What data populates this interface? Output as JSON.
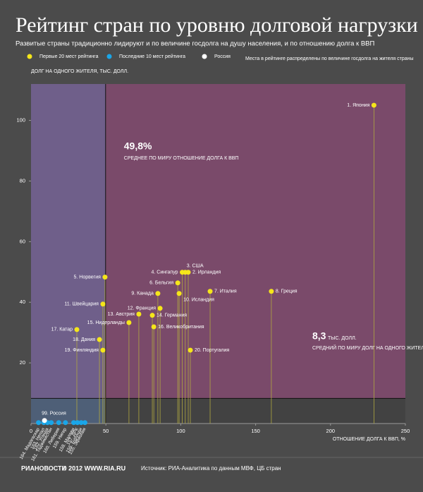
{
  "chart_data": {
    "type": "scatter",
    "title": "Рейтинг стран по уровню долговой нагрузки",
    "subtitle": "Развитые страны традиционно лидируют и по величине госдолга на душу населения, и по отношению долга к ВВП",
    "legend_note": "Места в рейтинге распределены по величине госдолга на жителя страны",
    "ylabel": "ДОЛГ НА ОДНОГО ЖИТЕЛЯ, ТЫС. ДОЛЛ.",
    "xlabel": "ОТНОШЕНИЕ ДОЛГА К ВВП, %",
    "xlim": [
      0,
      250
    ],
    "ylim": [
      0,
      112
    ],
    "xticks": [
      0,
      50,
      100,
      150,
      200,
      250
    ],
    "yticks": [
      20,
      40,
      60,
      80,
      100
    ],
    "avg_gdp": {
      "value": 49.8,
      "label": "49,8%",
      "text": "СРЕДНЕЕ ПО МИРУ ОТНОШЕНИЕ ДОЛГА К ВВП"
    },
    "avg_debt": {
      "value": 8.3,
      "label": "8,3",
      "unit": "ТЫС. ДОЛЛ.",
      "text": "СРЕДНИЙ ПО МИРУ ДОЛГ НА ОДНОГО ЖИТЕЛЯ"
    },
    "series": [
      {
        "name": "Первые 20 мест рейтинга",
        "color": "#f5e61a",
        "labels": [
          "1. Япония",
          "2. Ирландия",
          "3. США",
          "4. Сингапур",
          "5. Норвегия",
          "6. Бельгия",
          "7. Италия",
          "8. Греция",
          "9. Канада",
          "10. Исландия",
          "11. Швейцария",
          "12. Франция",
          "13. Австрия",
          "14. Германия",
          "15. Нидерланды",
          "16. Великобритания",
          "17. Катар",
          "18. Дания",
          "19. Финляндия",
          "20. Португалия"
        ],
        "x": [
          229,
          105,
          103,
          101,
          49.4,
          98,
          119.6,
          160.5,
          84.7,
          98.9,
          48,
          86.2,
          72,
          81,
          65.4,
          82,
          30.6,
          45.7,
          48,
          106.4
        ],
        "values": [
          105,
          49.9,
          49.9,
          49.9,
          48.3,
          46.4,
          43.6,
          43.6,
          42.9,
          42.9,
          39.4,
          38,
          36.1,
          35.7,
          33.3,
          31.9,
          31,
          27.7,
          24.2,
          24.2
        ]
      },
      {
        "name": "Последние 10 мест рейтинга",
        "color": "#1aa6e8",
        "labels": [
          "164. Мадагаскар",
          "163. Непал",
          "162. Уганда",
          "161. Таджикистан",
          "160. Либерия",
          "159. Нигер",
          "158. Малави",
          "157. ДРК",
          "156. Бурунди",
          "155. Эфиопия"
        ],
        "x": [
          5,
          8.5,
          11,
          13.5,
          18.5,
          23,
          28.5,
          31,
          33.5,
          36
        ],
        "values": [
          0.3,
          0.3,
          0.3,
          0.3,
          0.3,
          0.3,
          0.3,
          0.3,
          0.3,
          0.3
        ]
      },
      {
        "name": "Россия",
        "color": "#ffffff",
        "labels": [
          "99. Россия"
        ],
        "x": [
          9
        ],
        "values": [
          1
        ]
      }
    ],
    "footer_logo": "РИАНОВОСТИ",
    "footer_copy": "© 2012 WWW.RIA.RU",
    "source": "Источник: РИА-Аналитика по данным МВФ, ЦБ стран"
  }
}
